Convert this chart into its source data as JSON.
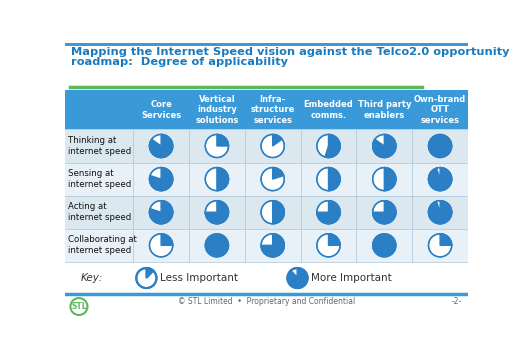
{
  "title_line1": "Mapping the Internet Speed vision against the Telco2.0 opportunity",
  "title_line2": "roadmap:  Degree of applicability",
  "title_color": "#1a7abf",
  "green_line_color": "#5cb85c",
  "header_bg": "#3a9ad9",
  "header_text_color": "#ffffff",
  "row_bg_even": "#dce8f0",
  "row_bg_odd": "#e8f1f7",
  "row_label_bg_even": "#dce8f0",
  "row_label_bg_odd": "#e8f1f7",
  "col_headers": [
    "Core\nServices",
    "Vertical\nindustry\nsolutions",
    "Infra-\nstructure\nservices",
    "Embedded\ncomms.",
    "Third party\nenablers",
    "Own-brand\nOTT\nservices"
  ],
  "row_headers": [
    "Thinking at\ninternet speed",
    "Sensing at\ninternet speed",
    "Acting at\ninternet speed",
    "Collaborating at\ninternet speed"
  ],
  "pie_blue": "#2b7fc5",
  "pie_border": "#2b7fc5",
  "pie_values": [
    [
      0.85,
      0.25,
      0.15,
      0.55,
      0.85,
      1.0
    ],
    [
      0.8,
      0.5,
      0.2,
      0.5,
      0.5,
      0.95
    ],
    [
      0.8,
      0.75,
      0.5,
      0.75,
      0.75,
      0.95
    ],
    [
      0.25,
      1.0,
      0.75,
      0.25,
      1.0,
      0.25
    ]
  ],
  "key_pie_less": 0.12,
  "key_pie_more": 0.88,
  "footer_text": "© STL Limited  •  Proprietary and Confidential",
  "footer_page": "-2-",
  "stl_circle_color": "#5cb85c",
  "stl_text_color": "#5cb85c",
  "bg_color": "#ffffff",
  "top_bar_color": "#3a9ad9",
  "bottom_bar_color": "#3a9ad9"
}
